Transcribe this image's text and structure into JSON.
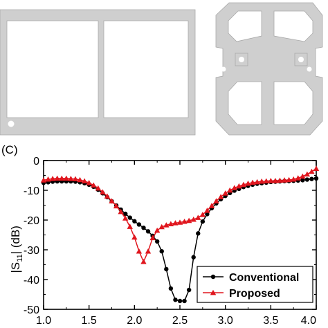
{
  "panel_label": "(C)",
  "colors": {
    "layout_fill": "#cfcfcf",
    "layout_stroke": "#a8a8a8",
    "conventional": "#000000",
    "proposed": "#e0161e"
  },
  "chart_data": {
    "type": "line",
    "title": "",
    "xlabel": "",
    "ylabel": "|S11| (dB)",
    "ylabel_parts": {
      "pre": "|S",
      "sub": "11",
      "post": "| (dB)"
    },
    "xlim": [
      1.0,
      4.0
    ],
    "ylim": [
      -50,
      0
    ],
    "xticks": [
      1.0,
      1.5,
      2.0,
      2.5,
      3.0,
      3.5,
      4.0
    ],
    "xtick_labels": [
      "1.0",
      "1.5",
      "2.0",
      "2.5",
      "3.0",
      "3.5",
      "4.0"
    ],
    "yticks": [
      0,
      -10,
      -20,
      -30,
      -40,
      -50
    ],
    "ytick_labels": [
      "0",
      "-10",
      "-20",
      "-30",
      "-40",
      "-50"
    ],
    "grid": false,
    "legend_position": "bottom-right",
    "series": [
      {
        "name": "Conventional",
        "color": "#000000",
        "marker": "circle",
        "x": [
          1.0,
          1.05,
          1.1,
          1.15,
          1.2,
          1.25,
          1.3,
          1.35,
          1.4,
          1.45,
          1.5,
          1.55,
          1.6,
          1.65,
          1.7,
          1.75,
          1.8,
          1.85,
          1.9,
          1.95,
          2.0,
          2.05,
          2.1,
          2.15,
          2.2,
          2.25,
          2.3,
          2.35,
          2.4,
          2.45,
          2.5,
          2.55,
          2.6,
          2.65,
          2.7,
          2.75,
          2.8,
          2.85,
          2.9,
          2.95,
          3.0,
          3.05,
          3.1,
          3.15,
          3.2,
          3.25,
          3.3,
          3.35,
          3.4,
          3.45,
          3.5,
          3.55,
          3.6,
          3.65,
          3.7,
          3.75,
          3.8,
          3.85,
          3.9,
          3.95,
          4.0
        ],
        "y": [
          -7.5,
          -7.3,
          -7.1,
          -7.0,
          -7.0,
          -7.0,
          -7.0,
          -7.1,
          -7.3,
          -7.6,
          -8.1,
          -8.8,
          -9.8,
          -11.0,
          -12.3,
          -13.7,
          -15.1,
          -16.5,
          -17.9,
          -19.2,
          -20.4,
          -21.5,
          -22.6,
          -23.8,
          -25.3,
          -27.2,
          -30.5,
          -36.5,
          -43.0,
          -46.8,
          -47.2,
          -47.2,
          -43.5,
          -32.5,
          -24.5,
          -20.5,
          -18.0,
          -16.0,
          -14.4,
          -13.0,
          -11.9,
          -10.9,
          -10.1,
          -9.5,
          -8.9,
          -8.5,
          -8.1,
          -7.8,
          -7.6,
          -7.4,
          -7.2,
          -7.1,
          -7.0,
          -6.9,
          -6.9,
          -6.8,
          -6.7,
          -6.6,
          -6.4,
          -6.2,
          -6.0
        ]
      },
      {
        "name": "Proposed",
        "color": "#e0161e",
        "marker": "triangle",
        "x": [
          1.0,
          1.05,
          1.1,
          1.15,
          1.2,
          1.25,
          1.3,
          1.35,
          1.4,
          1.45,
          1.5,
          1.55,
          1.6,
          1.65,
          1.7,
          1.75,
          1.8,
          1.85,
          1.9,
          1.95,
          2.0,
          2.05,
          2.1,
          2.15,
          2.2,
          2.25,
          2.3,
          2.35,
          2.4,
          2.45,
          2.5,
          2.55,
          2.6,
          2.65,
          2.7,
          2.75,
          2.8,
          2.85,
          2.9,
          2.95,
          3.0,
          3.05,
          3.1,
          3.15,
          3.2,
          3.25,
          3.3,
          3.35,
          3.4,
          3.45,
          3.5,
          3.55,
          3.6,
          3.65,
          3.7,
          3.75,
          3.8,
          3.85,
          3.9,
          3.95,
          4.0
        ],
        "y": [
          -6.6,
          -6.3,
          -6.1,
          -6.0,
          -6.0,
          -6.0,
          -6.1,
          -6.2,
          -6.5,
          -6.9,
          -7.5,
          -8.3,
          -9.3,
          -10.6,
          -12.0,
          -13.6,
          -15.3,
          -17.2,
          -19.4,
          -22.2,
          -25.8,
          -30.5,
          -34.0,
          -30.5,
          -26.0,
          -23.5,
          -22.3,
          -21.7,
          -21.3,
          -21.0,
          -20.8,
          -20.5,
          -20.2,
          -19.8,
          -19.2,
          -18.2,
          -16.8,
          -15.2,
          -13.6,
          -12.2,
          -11.0,
          -10.0,
          -9.2,
          -8.6,
          -8.1,
          -7.7,
          -7.4,
          -7.2,
          -7.0,
          -6.9,
          -6.8,
          -6.8,
          -6.7,
          -6.6,
          -6.5,
          -6.3,
          -5.9,
          -5.3,
          -4.6,
          -3.7,
          -2.7
        ]
      }
    ]
  }
}
